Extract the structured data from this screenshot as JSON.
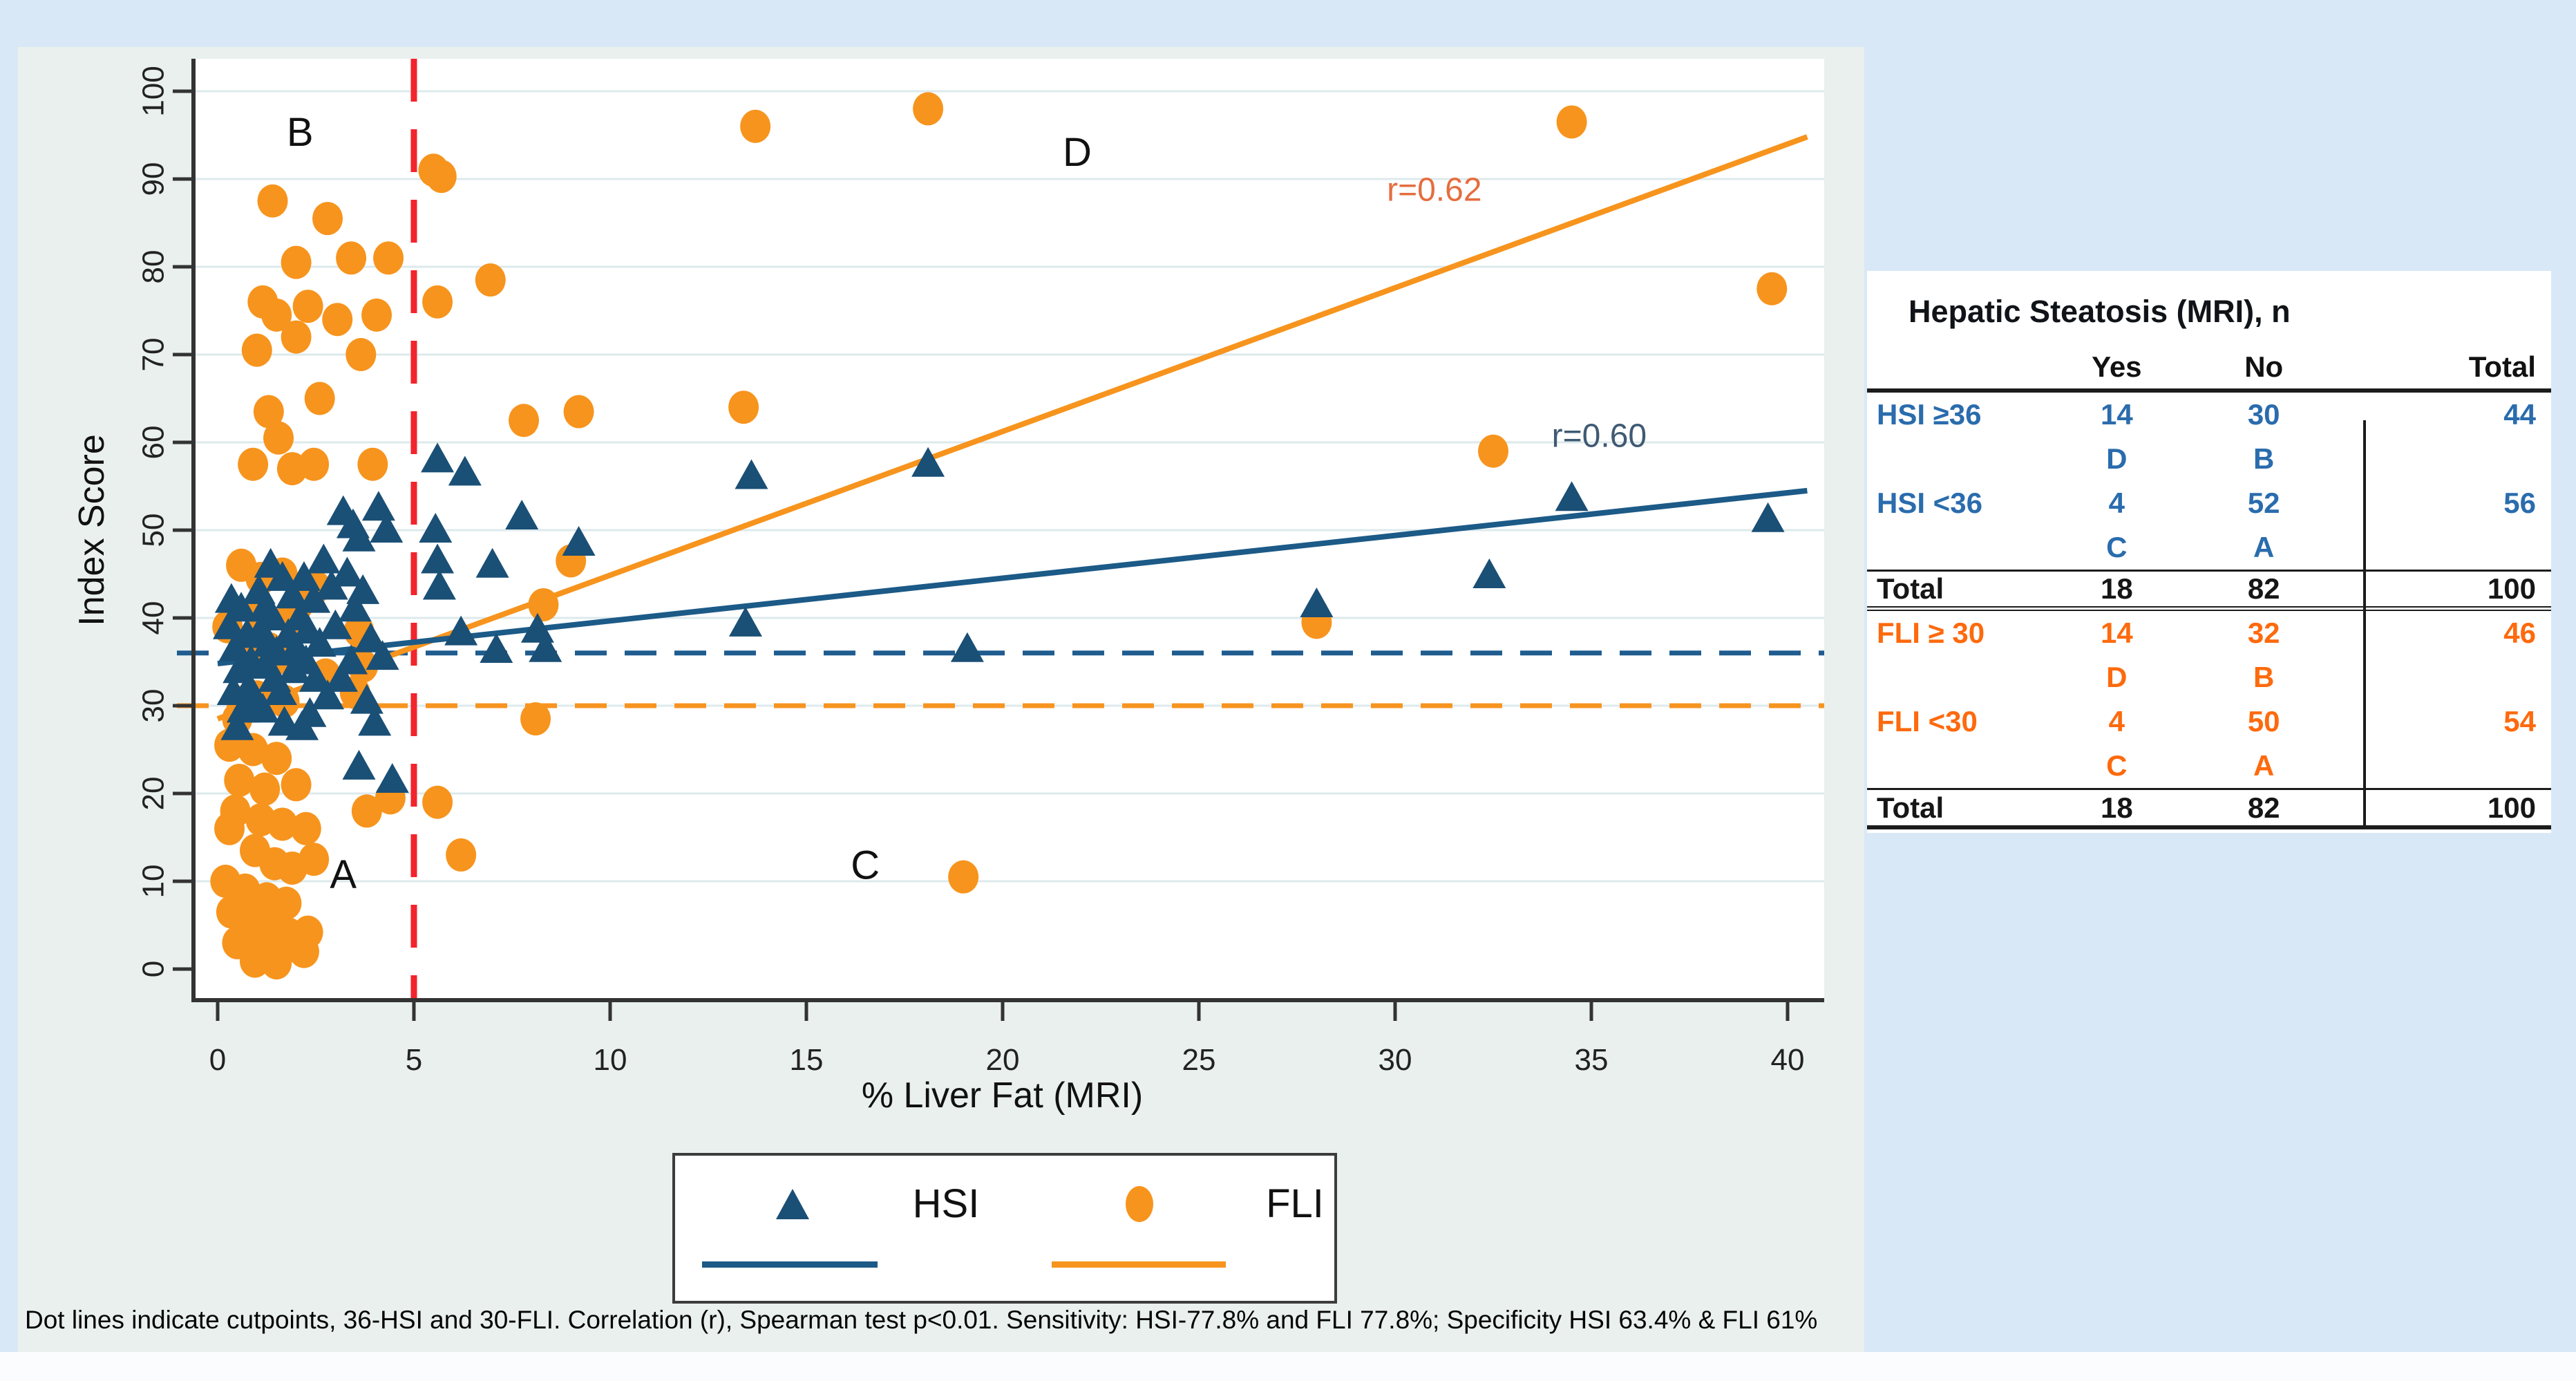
{
  "colors": {
    "page_bg": "#d9e8f6",
    "figure_bg": "#e9f0ee",
    "plot_bg": "#ffffff",
    "gridline": "#ddeaec",
    "axis": "#333333",
    "tick_label": "#222222",
    "hsi_marker": "#1a4f76",
    "hsi_line": "#1c5a87",
    "hsi_dash": "#1f5c8f",
    "fli_marker": "#f7941d",
    "fli_line": "#f7941d",
    "fli_dash": "#f79420",
    "red_cutline": "#f2242c",
    "r_hsi_text": "#3f5a73",
    "r_fli_text": "#e56d3f",
    "quadrant_text": "#111111",
    "table_hsi": "#2a6cad",
    "table_fli": "#fd6a0d",
    "table_neutral": "#161616"
  },
  "chart_data": {
    "type": "scatter",
    "title": "",
    "xlabel": "% Liver Fat (MRI)",
    "ylabel": "Index Score",
    "xlim": [
      0,
      40
    ],
    "ylim": [
      0,
      100
    ],
    "x_ticks": [
      0,
      5,
      10,
      15,
      20,
      25,
      30,
      35,
      40
    ],
    "y_ticks": [
      0,
      10,
      20,
      30,
      40,
      50,
      60,
      70,
      80,
      90,
      100
    ],
    "grid": "horizontal",
    "legend_position": "bottom",
    "cutpoints": {
      "hsi_index_cutoff_y": 36,
      "fli_index_cutoff_y": 30,
      "mri_liver_fat_cutoff_x": 5
    },
    "annotations": {
      "quadrants": [
        {
          "label": "A",
          "x": 3.2,
          "y": 10.4
        },
        {
          "label": "B",
          "x": 2.1,
          "y": 95.0
        },
        {
          "label": "C",
          "x": 16.5,
          "y": 11.5
        },
        {
          "label": "D",
          "x": 21.9,
          "y": 92.7
        }
      ],
      "r_labels": [
        {
          "series": "FLI",
          "text": "r=0.62",
          "x": 31.0,
          "y": 88.5
        },
        {
          "series": "HSI",
          "text": "r=0.60",
          "x": 35.2,
          "y": 60.5
        }
      ]
    },
    "series": [
      {
        "name": "HSI",
        "marker": "triangle",
        "fit_line": {
          "x1": 0,
          "y1": 34.8,
          "x2": 40.5,
          "y2": 54.5
        },
        "r_value": 0.6,
        "points": [
          [
            0.35,
            42
          ],
          [
            0.3,
            39
          ],
          [
            0.45,
            36.5
          ],
          [
            0.55,
            34
          ],
          [
            0.4,
            31.5
          ],
          [
            0.65,
            29.5
          ],
          [
            0.5,
            27.5
          ],
          [
            0.75,
            38
          ],
          [
            0.85,
            35
          ],
          [
            0.8,
            32
          ],
          [
            0.95,
            30
          ],
          [
            0.6,
            41
          ],
          [
            1.05,
            43
          ],
          [
            1.2,
            41
          ],
          [
            1.4,
            40
          ],
          [
            1.1,
            38.5
          ],
          [
            1.3,
            37
          ],
          [
            1.5,
            36
          ],
          [
            1.2,
            34.5
          ],
          [
            1.45,
            33
          ],
          [
            1.6,
            31.5
          ],
          [
            1.15,
            29.5
          ],
          [
            1.7,
            28
          ],
          [
            1.9,
            42.5
          ],
          [
            1.8,
            38
          ],
          [
            2.0,
            36.5
          ],
          [
            1.65,
            44.5
          ],
          [
            1.35,
            46
          ],
          [
            1.95,
            34
          ],
          [
            2.2,
            44.5
          ],
          [
            2.45,
            42
          ],
          [
            2.1,
            40
          ],
          [
            2.3,
            38.5
          ],
          [
            2.6,
            37
          ],
          [
            2.25,
            35
          ],
          [
            2.5,
            33
          ],
          [
            2.8,
            31
          ],
          [
            2.35,
            29
          ],
          [
            2.9,
            43.5
          ],
          [
            2.7,
            46.5
          ],
          [
            3.0,
            39
          ],
          [
            3.2,
            52
          ],
          [
            3.45,
            50.5
          ],
          [
            3.6,
            49
          ],
          [
            3.3,
            45
          ],
          [
            3.7,
            43
          ],
          [
            3.5,
            41
          ],
          [
            3.9,
            37.5
          ],
          [
            3.4,
            35
          ],
          [
            3.15,
            33
          ],
          [
            4.1,
            52.5
          ],
          [
            4.3,
            50
          ],
          [
            4.2,
            35.5
          ],
          [
            3.8,
            30.5
          ],
          [
            4.0,
            28
          ],
          [
            2.15,
            27.5
          ],
          [
            3.6,
            23
          ],
          [
            4.45,
            21.5
          ],
          [
            5.6,
            58
          ],
          [
            5.55,
            50
          ],
          [
            5.6,
            46.5
          ],
          [
            5.65,
            43.5
          ],
          [
            6.3,
            56.5
          ],
          [
            7.0,
            46
          ],
          [
            7.75,
            51.5
          ],
          [
            9.2,
            48.5
          ],
          [
            6.2,
            38.3
          ],
          [
            8.15,
            38.6
          ],
          [
            7.1,
            36.3
          ],
          [
            8.35,
            36.4
          ],
          [
            13.6,
            56.1
          ],
          [
            13.45,
            39.3
          ],
          [
            18.1,
            57.5
          ],
          [
            19.1,
            36.4
          ],
          [
            28.0,
            41.5
          ],
          [
            32.4,
            44.8
          ],
          [
            34.5,
            53.6
          ],
          [
            39.5,
            51.2
          ]
        ]
      },
      {
        "name": "FLI",
        "marker": "circle",
        "fit_line": {
          "x1": 0,
          "y1": 28.5,
          "x2": 40.5,
          "y2": 94.8
        },
        "r_value": 0.62,
        "points": [
          [
            1.4,
            87.5
          ],
          [
            2.8,
            85.5
          ],
          [
            2.0,
            80.5
          ],
          [
            3.4,
            81
          ],
          [
            4.35,
            81
          ],
          [
            1.15,
            76
          ],
          [
            1.5,
            74.5
          ],
          [
            2.3,
            75.5
          ],
          [
            3.05,
            74
          ],
          [
            2.0,
            72
          ],
          [
            1.0,
            70.5
          ],
          [
            3.65,
            70
          ],
          [
            4.05,
            74.5
          ],
          [
            2.6,
            65
          ],
          [
            1.3,
            63.5
          ],
          [
            1.55,
            60.5
          ],
          [
            0.9,
            57.5
          ],
          [
            1.9,
            57
          ],
          [
            2.45,
            57.5
          ],
          [
            3.95,
            57.5
          ],
          [
            0.6,
            46
          ],
          [
            1.1,
            44.5
          ],
          [
            1.65,
            45
          ],
          [
            2.5,
            43.5
          ],
          [
            2.15,
            43
          ],
          [
            0.8,
            37
          ],
          [
            1.3,
            36.5
          ],
          [
            2.05,
            41.5
          ],
          [
            3.6,
            38.5
          ],
          [
            0.25,
            39
          ],
          [
            1.05,
            40.5
          ],
          [
            1.85,
            40
          ],
          [
            1.0,
            31
          ],
          [
            1.7,
            30.5
          ],
          [
            0.7,
            30.5
          ],
          [
            3.7,
            34.5
          ],
          [
            1.6,
            35.5
          ],
          [
            0.5,
            28.5
          ],
          [
            2.75,
            33.5
          ],
          [
            3.5,
            31.5
          ],
          [
            0.3,
            25.5
          ],
          [
            0.9,
            25
          ],
          [
            1.5,
            24
          ],
          [
            0.55,
            21.5
          ],
          [
            1.2,
            20.5
          ],
          [
            2.0,
            21
          ],
          [
            0.45,
            18
          ],
          [
            1.1,
            17
          ],
          [
            1.65,
            16.5
          ],
          [
            0.3,
            16
          ],
          [
            2.25,
            16
          ],
          [
            3.8,
            18
          ],
          [
            0.95,
            13.5
          ],
          [
            1.45,
            12
          ],
          [
            1.9,
            11.5
          ],
          [
            2.45,
            12.5
          ],
          [
            0.2,
            10
          ],
          [
            0.7,
            9
          ],
          [
            1.25,
            8
          ],
          [
            1.75,
            7.5
          ],
          [
            0.35,
            6.5
          ],
          [
            0.85,
            5.5
          ],
          [
            1.35,
            4.5
          ],
          [
            1.8,
            4
          ],
          [
            2.3,
            4.2
          ],
          [
            0.5,
            3
          ],
          [
            1.05,
            2.5
          ],
          [
            1.6,
            2
          ],
          [
            2.2,
            2.0
          ],
          [
            0.95,
            0.9
          ],
          [
            1.5,
            0.7
          ],
          [
            4.4,
            19.5
          ],
          [
            5.6,
            19
          ],
          [
            6.2,
            13
          ],
          [
            5.5,
            91
          ],
          [
            5.7,
            90.3
          ],
          [
            5.6,
            76
          ],
          [
            6.95,
            78.5
          ],
          [
            7.8,
            62.5
          ],
          [
            9.2,
            63.5
          ],
          [
            13.4,
            64
          ],
          [
            13.7,
            96
          ],
          [
            18.1,
            98
          ],
          [
            34.5,
            96.5
          ],
          [
            39.6,
            77.5
          ],
          [
            32.5,
            59
          ],
          [
            9.0,
            46.5
          ],
          [
            8.3,
            41.5
          ],
          [
            28.0,
            39.5
          ],
          [
            8.1,
            28.5
          ],
          [
            19.0,
            10.5
          ]
        ]
      }
    ]
  },
  "legend": {
    "items": [
      {
        "label": "HSI",
        "marker": "triangle"
      },
      {
        "label": "FLI",
        "marker": "circle"
      }
    ]
  },
  "caption": "Dot lines indicate cutpoints, 36-HSI and 30-FLI. Correlation (r), Spearman test p<0.01. Sensitivity: HSI-77.8% and FLI 77.8%; Specificity HSI 63.4% & FLI 61%",
  "table": {
    "title": "Hepatic Steatosis (MRI), n",
    "columns": [
      "",
      "Yes",
      "No",
      "Total"
    ],
    "rows": [
      {
        "cells": [
          "",
          "Yes",
          "No",
          "Total"
        ],
        "style": "header",
        "rule": ""
      },
      {
        "cells": [
          "HSI ≥36",
          "14",
          "30",
          "44"
        ],
        "style": "hsi",
        "rule": ""
      },
      {
        "cells": [
          "",
          "D",
          "B",
          ""
        ],
        "style": "hsi",
        "rule": ""
      },
      {
        "cells": [
          "HSI <36",
          "4",
          "52",
          "56"
        ],
        "style": "hsi",
        "rule": ""
      },
      {
        "cells": [
          "",
          "C",
          "A",
          ""
        ],
        "style": "hsi",
        "rule": ""
      },
      {
        "cells": [
          "Total",
          "18",
          "82",
          "100"
        ],
        "style": "total",
        "rule": "mid"
      },
      {
        "cells": [
          "FLI ≥ 30",
          "14",
          "32",
          "46"
        ],
        "style": "fli",
        "rule": ""
      },
      {
        "cells": [
          "",
          "D",
          "B",
          ""
        ],
        "style": "fli",
        "rule": ""
      },
      {
        "cells": [
          "FLI <30",
          "4",
          "50",
          "54"
        ],
        "style": "fli",
        "rule": ""
      },
      {
        "cells": [
          "",
          "C",
          "A",
          ""
        ],
        "style": "fli",
        "rule": ""
      },
      {
        "cells": [
          "Total",
          "18",
          "82",
          "100"
        ],
        "style": "total",
        "rule": "end"
      }
    ]
  }
}
